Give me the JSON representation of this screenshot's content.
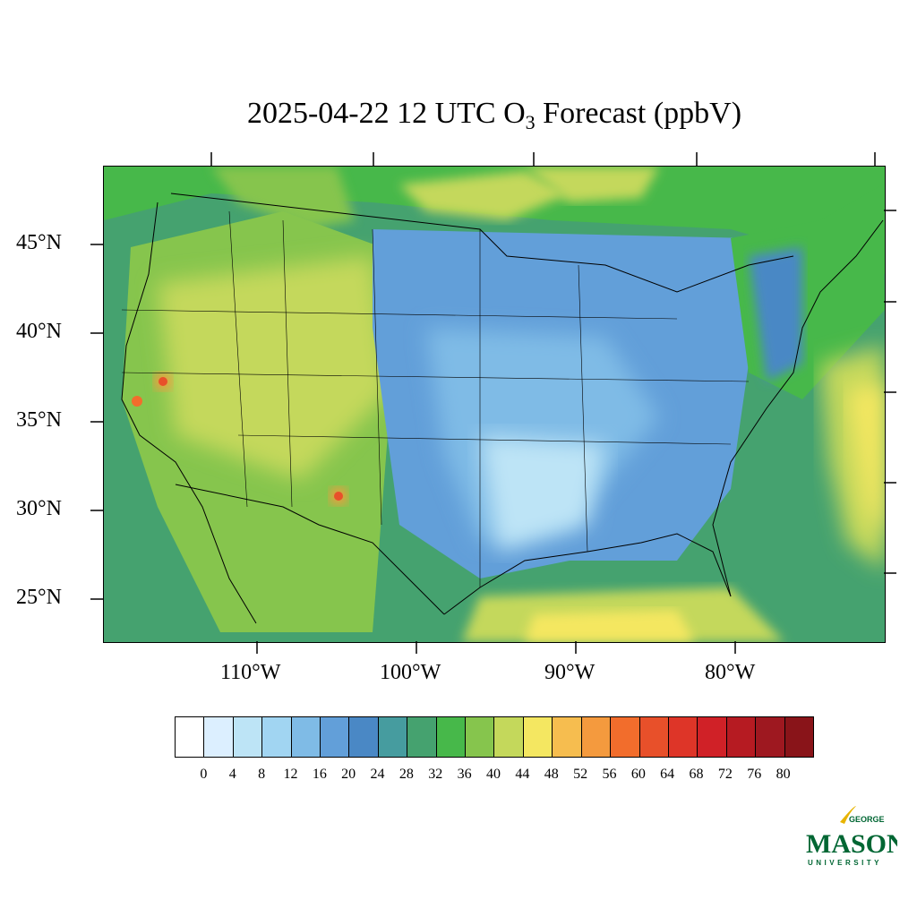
{
  "title": {
    "text_main": "2025-04-22 12 UTC O",
    "subscript": "3",
    "text_tail": " Forecast (ppbV)"
  },
  "axes": {
    "lat_labels": [
      "45°N",
      "40°N",
      "35°N",
      "30°N",
      "25°N"
    ],
    "lon_labels": [
      "110°W",
      "100°W",
      "90°W",
      "80°W"
    ]
  },
  "colorbar": {
    "ticks": [
      "0",
      "4",
      "8",
      "12",
      "16",
      "20",
      "24",
      "28",
      "32",
      "36",
      "40",
      "44",
      "48",
      "52",
      "56",
      "60",
      "64",
      "68",
      "72",
      "76",
      "80"
    ],
    "colors": [
      "#ffffff",
      "#dcefff",
      "#bde4f6",
      "#a1d5f2",
      "#7fbbe6",
      "#629fd9",
      "#4a88c5",
      "#469c9f",
      "#45a26f",
      "#47b84a",
      "#86c54d",
      "#c4d85b",
      "#f4e761",
      "#f6bd4f",
      "#f49a3e",
      "#f26d2c",
      "#e8502a",
      "#de3528",
      "#d02127",
      "#b61b22",
      "#9e1820",
      "#891419"
    ]
  },
  "logo": {
    "line1": "GEORGE",
    "line2": "MASON",
    "line3": "UNIVERSITY"
  }
}
